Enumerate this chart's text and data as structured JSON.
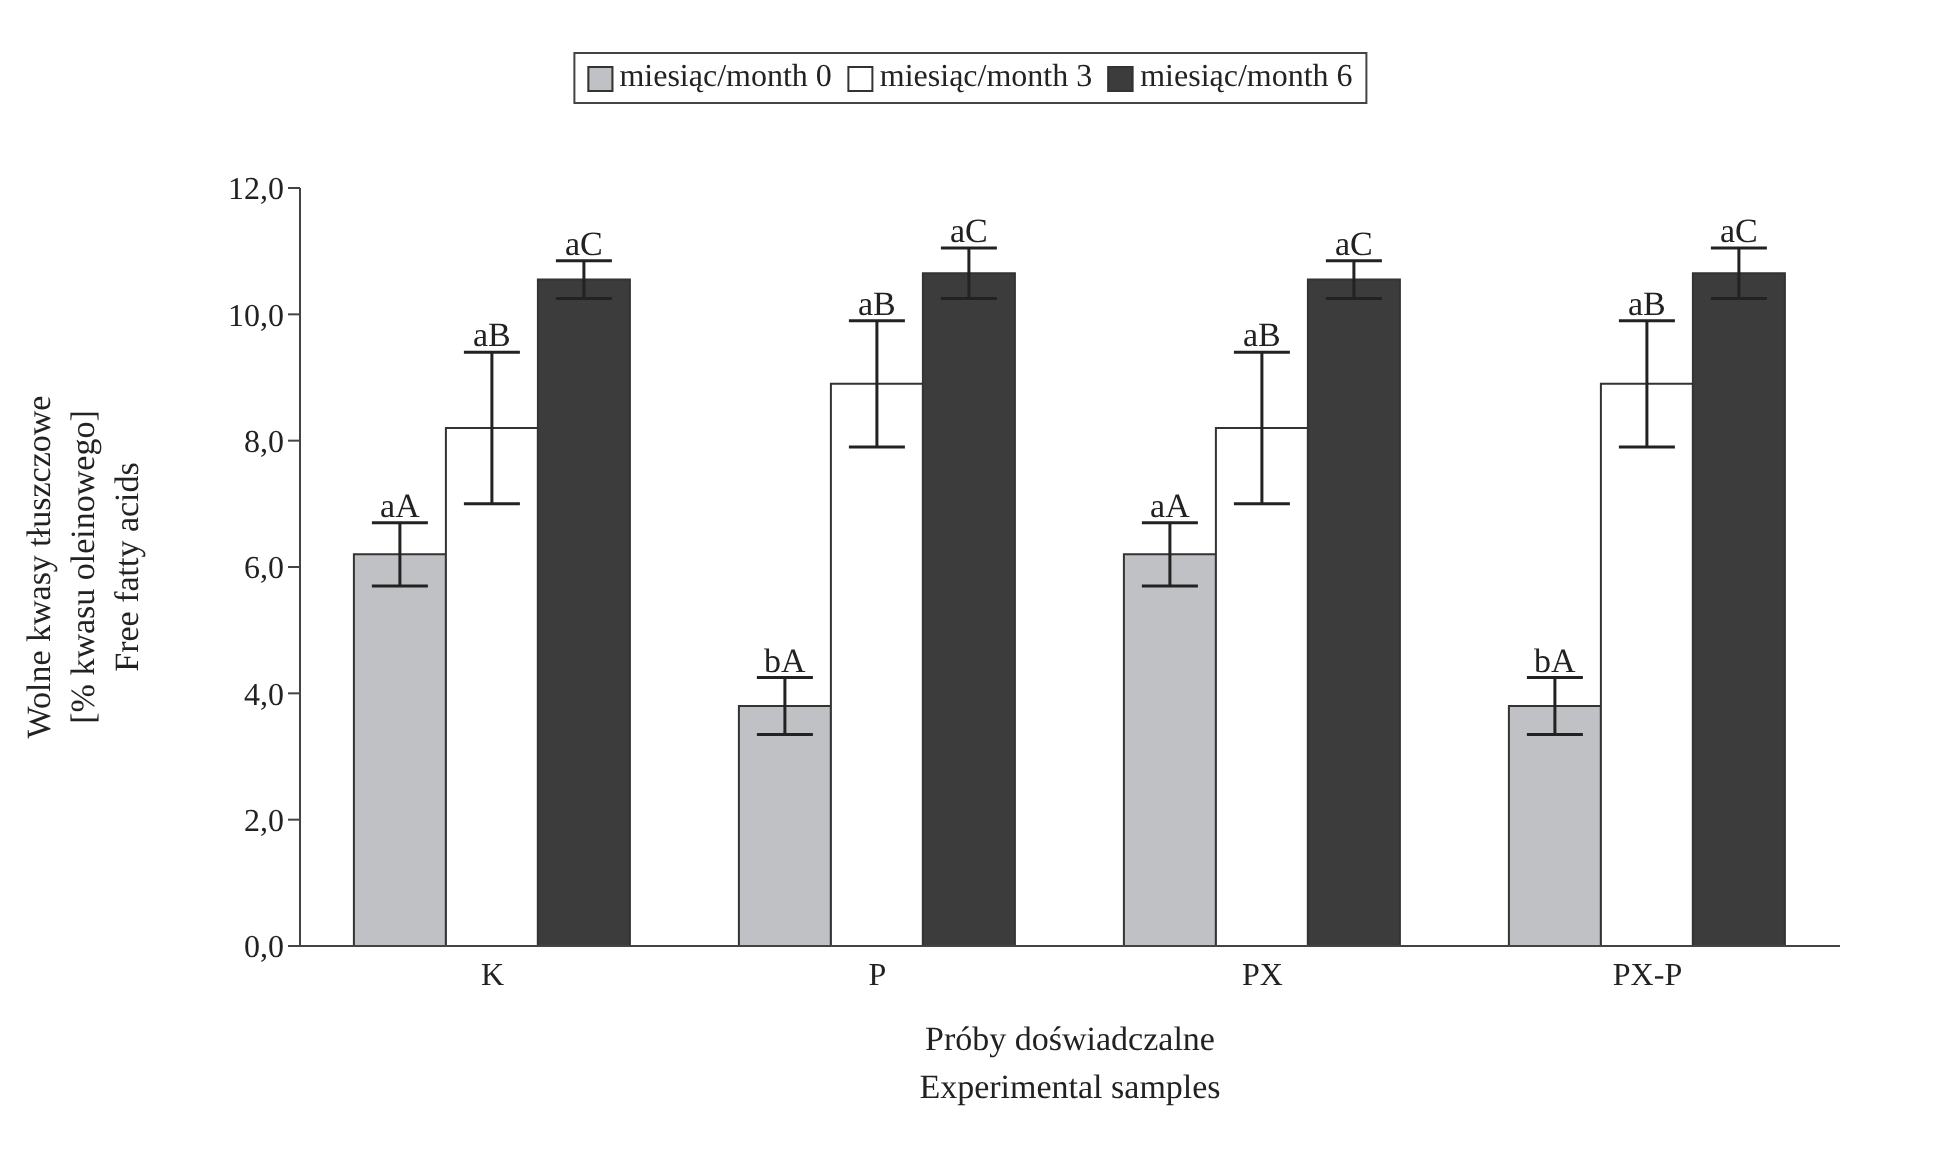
{
  "chart_data": {
    "type": "bar",
    "xlabel": "Próby doświadczalne\nExperimental samples",
    "ylabel": "Wolne kwasy tłuszczowe\n[% kwasu oleinowego]\nFree fatty acids",
    "categories": [
      "K",
      "P",
      "PX",
      "PX-P"
    ],
    "series": [
      {
        "name": "miesiąc/month 0",
        "color": "#c0c1c4",
        "values": [
          6.2,
          3.8,
          6.2,
          3.8
        ],
        "errors": [
          0.5,
          0.45,
          0.5,
          0.45
        ],
        "value_labels": [
          "aA",
          "bA",
          "aA",
          "bA"
        ]
      },
      {
        "name": "miesiąc/month 3",
        "color": "#ffffff",
        "values": [
          8.2,
          8.9,
          8.2,
          8.9
        ],
        "errors": [
          1.2,
          1.0,
          1.2,
          1.0
        ],
        "value_labels": [
          "aB",
          "aB",
          "aB",
          "aB"
        ]
      },
      {
        "name": "miesiąc/month 6",
        "color": "#3c3c3c",
        "values": [
          10.55,
          10.65,
          10.55,
          10.65
        ],
        "errors": [
          0.3,
          0.4,
          0.3,
          0.4
        ],
        "value_labels": [
          "aC",
          "aC",
          "aC",
          "aC"
        ]
      }
    ],
    "ylim": [
      0,
      12
    ],
    "yticks": [
      {
        "value": 0,
        "label": "0,0"
      },
      {
        "value": 2,
        "label": "2,0"
      },
      {
        "value": 4,
        "label": "4,0"
      },
      {
        "value": 6,
        "label": "6,0"
      },
      {
        "value": 8,
        "label": "8,0"
      },
      {
        "value": 10,
        "label": "10,0"
      },
      {
        "value": 12,
        "label": "12,0"
      }
    ],
    "grid": false,
    "legend": "top"
  }
}
